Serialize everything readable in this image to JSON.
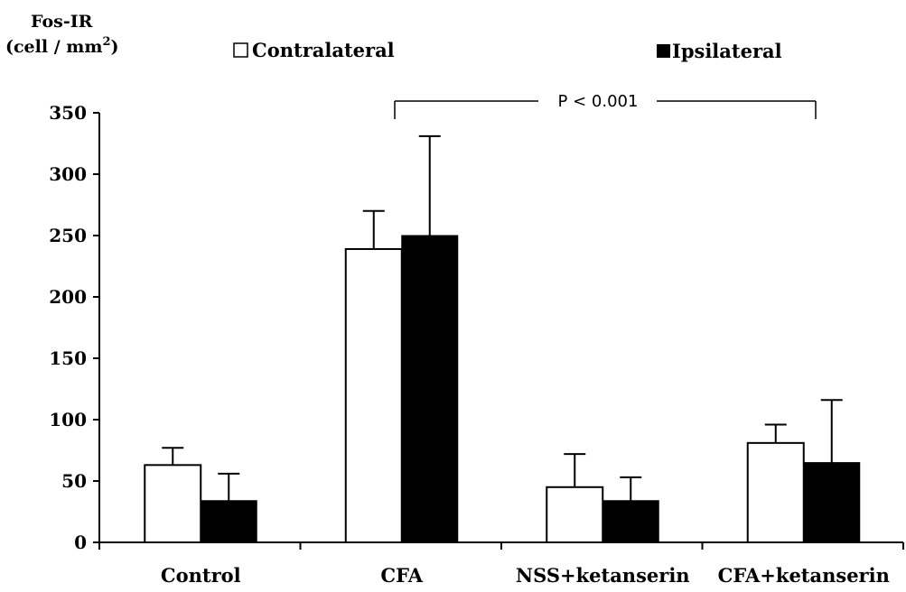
{
  "chart_data": {
    "type": "bar",
    "ylabel_line1": "Fos-IR",
    "ylabel_line2": "(cell / mm",
    "ylabel_sup": "2",
    "ylabel_close": ")",
    "ylim": [
      0,
      350
    ],
    "yticks": [
      0,
      50,
      100,
      150,
      200,
      250,
      300,
      350
    ],
    "categories": [
      "Control",
      "CFA",
      "NSS+ketanserin",
      "CFA+ketanserin"
    ],
    "series": [
      {
        "name": "Contralateral",
        "color": "#ffffff",
        "values": [
          63,
          239,
          45,
          81
        ],
        "errors": [
          14,
          31,
          27,
          15
        ]
      },
      {
        "name": "Ipsilateral",
        "color": "#000000",
        "values": [
          34,
          250,
          34,
          65
        ],
        "errors": [
          22,
          81,
          19,
          51
        ]
      }
    ],
    "legend_position": "top",
    "grid": false,
    "annotation": {
      "text": "P < 0.001",
      "from_category": 1,
      "to_category": 3
    }
  }
}
